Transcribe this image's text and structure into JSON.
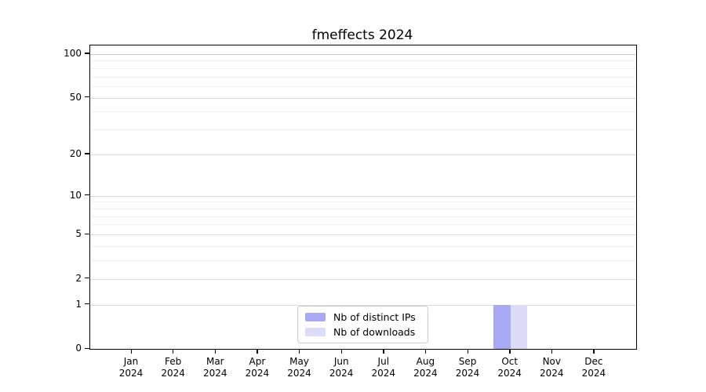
{
  "chart_data": {
    "type": "bar",
    "title": "fmeffects 2024",
    "categories": [
      "Jan",
      "Feb",
      "Mar",
      "Apr",
      "May",
      "Jun",
      "Jul",
      "Aug",
      "Sep",
      "Oct",
      "Nov",
      "Dec"
    ],
    "x_tick_year_line": "2024",
    "series": [
      {
        "name": "Nb of distinct IPs",
        "color": "#a7a9f2",
        "values": [
          0,
          0,
          0,
          0,
          0,
          0,
          0,
          0,
          0,
          1,
          0,
          0
        ]
      },
      {
        "name": "Nb of downloads",
        "color": "#dcdcf8",
        "values": [
          0,
          0,
          0,
          0,
          0,
          0,
          0,
          0,
          0,
          1,
          0,
          0
        ]
      }
    ],
    "xlabel": "",
    "ylabel": "",
    "y_scale": "log1p",
    "y_axis_ticks": [
      100,
      50,
      20,
      10,
      5,
      2,
      1,
      0
    ],
    "y_minor_ticks": [
      90,
      80,
      70,
      60,
      40,
      30,
      9,
      8,
      7,
      6,
      4,
      3
    ],
    "ylim": [
      0,
      113
    ],
    "grid": "horizontal",
    "legend_position": "lower center, inside plot"
  },
  "colors": {
    "background": "#ffffff",
    "spine": "#000000",
    "grid_major": "#dcdcdc",
    "grid_minor": "#f1f1f1",
    "bar_distinct_ips": "#a7a9f2",
    "bar_downloads": "#dcdcf8",
    "legend_border": "#cccccc",
    "text": "#000000"
  }
}
